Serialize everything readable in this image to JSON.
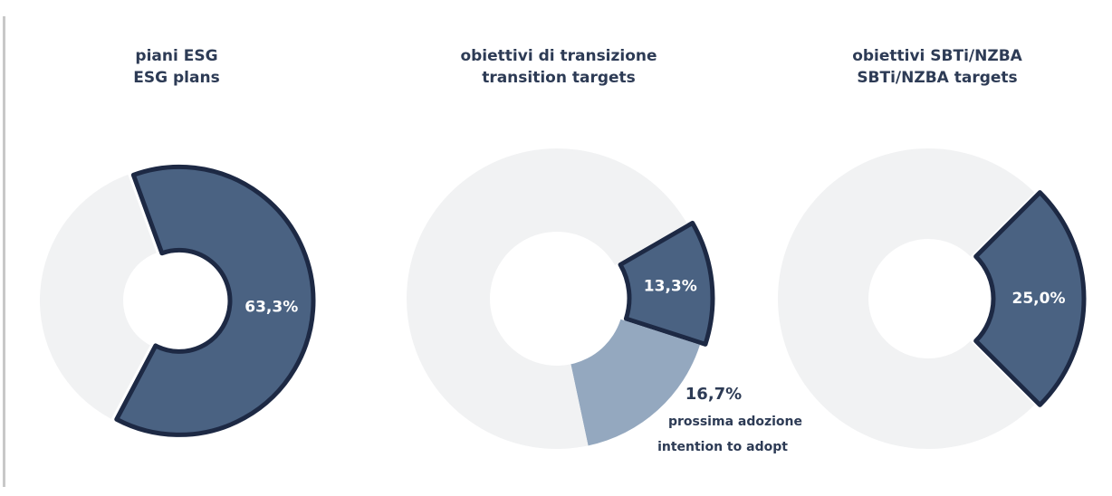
{
  "chart_data": [
    {
      "type": "donut",
      "title": "piani ESG",
      "subtitle": "ESG plans",
      "values": [
        63.3,
        36.7
      ],
      "value_labels": [
        "63,3%",
        null
      ],
      "colors": [
        "#4a6282",
        "#f1f2f3"
      ]
    },
    {
      "type": "donut",
      "title": "obiettivi di transizione",
      "subtitle": "transition targets",
      "values": [
        13.3,
        16.7,
        70.0
      ],
      "value_labels": [
        "13,3%",
        "16,7%",
        null
      ],
      "colors": [
        "#4a6282",
        "#94a8bf",
        "#f1f2f3"
      ],
      "annotations": [
        "prossima adozione",
        "intention to adopt"
      ]
    },
    {
      "type": "donut",
      "title": "obiettivi SBTi/NZBA",
      "subtitle": "SBTi/NZBA targets",
      "values": [
        25.0,
        75.0
      ],
      "value_labels": [
        "25,0%",
        null
      ],
      "colors": [
        "#4a6282",
        "#f1f2f3"
      ]
    }
  ]
}
